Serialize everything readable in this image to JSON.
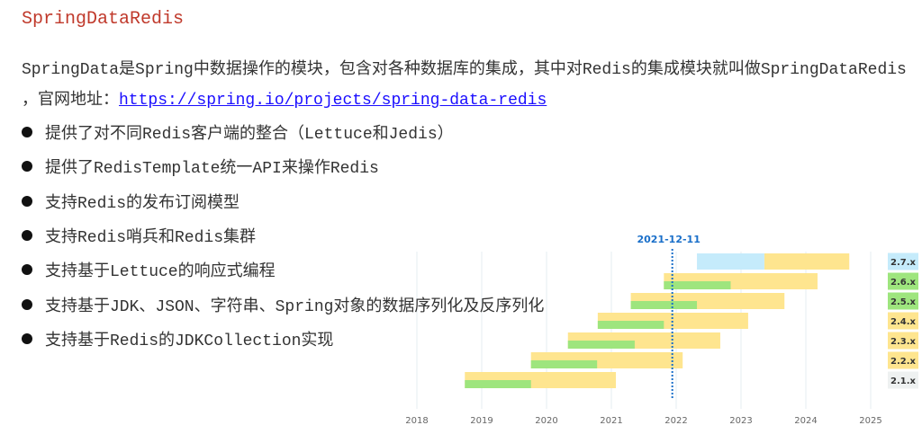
{
  "title": "SpringDataRedis",
  "intro": {
    "line1": "SpringData是Spring中数据操作的模块，包含对各种数据库的集成，其中对Redis的集成模块就叫做SpringDataRedis",
    "line2_prefix": "，官网地址：",
    "link": "https://spring.io/projects/spring-data-redis"
  },
  "features": [
    "提供了对不同Redis客户端的整合（Lettuce和Jedis）",
    "提供了RedisTemplate统一API来操作Redis",
    "支持Redis的发布订阅模型",
    "支持Redis哨兵和Redis集群",
    "支持基于Lettuce的响应式编程",
    "支持基于JDK、JSON、字符串、Spring对象的数据序列化及反序列化",
    "支持基于Redis的JDKCollection实现"
  ],
  "chart_data": {
    "type": "bar",
    "orientation": "horizontal-range",
    "x_ticks": [
      "2018",
      "2019",
      "2020",
      "2021",
      "2022",
      "2023",
      "2024",
      "2025"
    ],
    "xlim": [
      2018,
      2025
    ],
    "grid": true,
    "marker": {
      "label": "2021-12-11",
      "x": 2021.94,
      "color": "#1a6fc9"
    },
    "colors": {
      "oss": "#9ee57e",
      "commercial": "#fee58f",
      "future": "#c5ebfb",
      "eol": "#eef1f1"
    },
    "rows": [
      {
        "version": "2.7.x",
        "badge": "future",
        "future": [
          2022.32,
          2023.36
        ],
        "commercial": [
          2023.36,
          2024.67
        ]
      },
      {
        "version": "2.6.x",
        "badge": "oss",
        "oss": [
          2021.81,
          2022.84
        ],
        "commercial": [
          2021.81,
          2024.18
        ]
      },
      {
        "version": "2.5.x",
        "badge": "oss",
        "oss": [
          2021.3,
          2022.32
        ],
        "commercial": [
          2021.3,
          2023.67
        ]
      },
      {
        "version": "2.4.x",
        "badge": "commercial",
        "oss": [
          2020.79,
          2021.81
        ],
        "commercial": [
          2020.79,
          2023.11
        ]
      },
      {
        "version": "2.3.x",
        "badge": "commercial",
        "oss": [
          2020.33,
          2021.36
        ],
        "commercial": [
          2020.33,
          2022.68
        ]
      },
      {
        "version": "2.2.x",
        "badge": "commercial",
        "oss": [
          2019.76,
          2020.78
        ],
        "commercial": [
          2019.76,
          2022.1
        ]
      },
      {
        "version": "2.1.x",
        "badge": "eol",
        "oss": [
          2018.74,
          2019.76
        ],
        "commercial": [
          2018.74,
          2021.07
        ]
      }
    ]
  }
}
